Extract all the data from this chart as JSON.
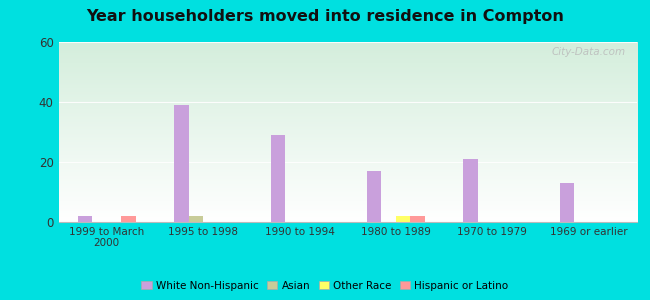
{
  "title": "Year householders moved into residence in Compton",
  "categories": [
    "1999 to March\n2000",
    "1995 to 1998",
    "1990 to 1994",
    "1980 to 1989",
    "1970 to 1979",
    "1969 or earlier"
  ],
  "series": {
    "White Non-Hispanic": [
      2,
      39,
      29,
      17,
      21,
      13
    ],
    "Asian": [
      0,
      2,
      0,
      0,
      0,
      0
    ],
    "Other Race": [
      0,
      0,
      0,
      2,
      0,
      0
    ],
    "Hispanic or Latino": [
      2,
      0,
      0,
      2,
      0,
      0
    ]
  },
  "colors": {
    "White Non-Hispanic": "#c9a0dc",
    "Asian": "#c8cc99",
    "Other Race": "#ffff66",
    "Hispanic or Latino": "#ff9999"
  },
  "ylim": [
    0,
    60
  ],
  "yticks": [
    0,
    20,
    40,
    60
  ],
  "bar_width": 0.15,
  "outer_color": "#00e0e0",
  "watermark": "City-Data.com"
}
